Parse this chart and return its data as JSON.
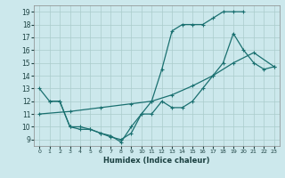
{
  "xlabel": "Humidex (Indice chaleur)",
  "bg_color": "#cce8ec",
  "grid_color": "#aacccc",
  "line_color": "#1a7070",
  "xlim": [
    -0.5,
    23.5
  ],
  "ylim": [
    8.5,
    19.5
  ],
  "xticks": [
    0,
    1,
    2,
    3,
    4,
    5,
    6,
    7,
    8,
    9,
    10,
    11,
    12,
    13,
    14,
    15,
    16,
    17,
    18,
    19,
    20,
    21,
    22,
    23
  ],
  "yticks": [
    9,
    10,
    11,
    12,
    13,
    14,
    15,
    16,
    17,
    18,
    19
  ],
  "line1_x": [
    0,
    1,
    2,
    3,
    4,
    5,
    6,
    7,
    8,
    9,
    10,
    11,
    12,
    13,
    14,
    15,
    16,
    17,
    18,
    19,
    20
  ],
  "line1_y": [
    13,
    12,
    12,
    10,
    10,
    9.8,
    9.5,
    9.2,
    9.0,
    9.5,
    11.0,
    12.0,
    14.5,
    17.5,
    18.0,
    18.0,
    18.0,
    18.5,
    19.0,
    19.0,
    19.0
  ],
  "line2_x": [
    1,
    2,
    3,
    4,
    5,
    6,
    7,
    8,
    9,
    10,
    11,
    12,
    13,
    14,
    15,
    16,
    17,
    18,
    19,
    20,
    21,
    22,
    23
  ],
  "line2_y": [
    12,
    12,
    10,
    9.8,
    9.8,
    9.5,
    9.3,
    8.8,
    10.0,
    11.0,
    11.0,
    12.0,
    11.5,
    11.5,
    12.0,
    13.0,
    14.0,
    15.0,
    17.3,
    16.0,
    15.0,
    14.5,
    14.7
  ],
  "line3_x": [
    0,
    3,
    6,
    9,
    11,
    13,
    15,
    17,
    19,
    21,
    23
  ],
  "line3_y": [
    11.0,
    11.2,
    11.5,
    11.8,
    12.0,
    12.5,
    13.2,
    14.0,
    15.0,
    15.8,
    14.7
  ]
}
